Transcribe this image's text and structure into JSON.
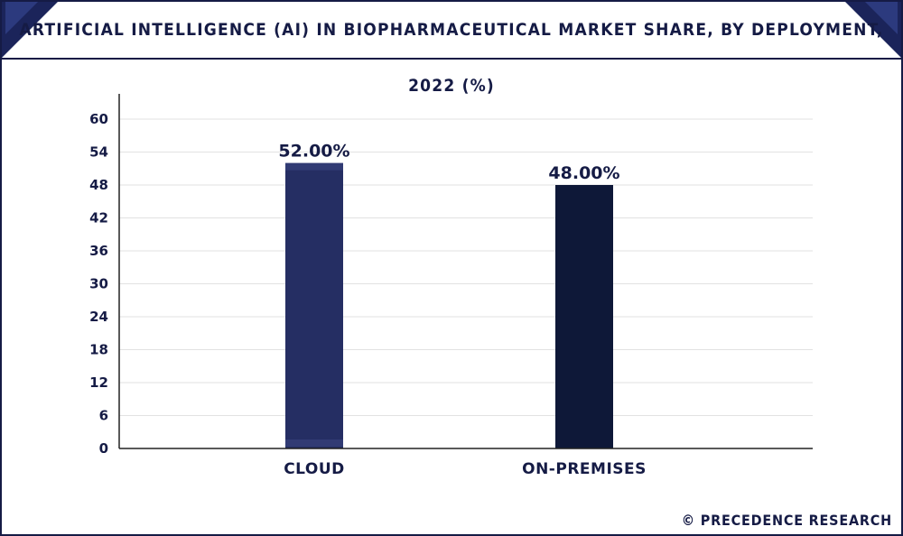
{
  "header": {
    "title": "ARTIFICIAL INTELLIGENCE (AI) IN BIOPHARMACEUTICAL MARKET SHARE, BY DEPLOYMENT, 2022 (%)"
  },
  "footer": {
    "credit": "© PRECEDENCE RESEARCH"
  },
  "colors": {
    "brand_dark": "#151b45",
    "bar_cloud": "#252e63",
    "bar_onprem": "#0e1838",
    "grid": "#e2e2e2"
  },
  "chart_data": {
    "type": "bar",
    "categories": [
      "CLOUD",
      "ON-PREMISES"
    ],
    "values": [
      52,
      48
    ],
    "data_labels": [
      "52.00%",
      "48.00%"
    ],
    "title": "ARTIFICIAL INTELLIGENCE (AI) IN BIOPHARMACEUTICAL MARKET SHARE, BY DEPLOYMENT, 2022 (%)",
    "xlabel": "",
    "ylabel": "",
    "ylim": [
      0,
      60
    ],
    "yticks": [
      0,
      6,
      12,
      18,
      24,
      30,
      36,
      42,
      48,
      54,
      60
    ],
    "grid": true,
    "legend": "none"
  }
}
